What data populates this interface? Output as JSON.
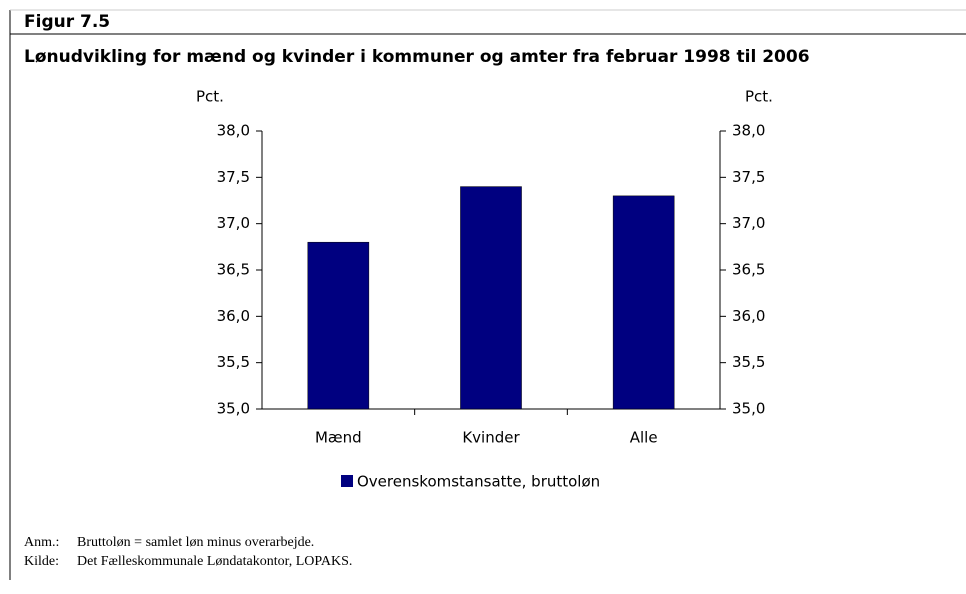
{
  "chart_data": {
    "type": "bar",
    "figure_label": "Figur 7.5",
    "title": "Lønudvikling for mænd og kvinder i kommuner og amter fra februar 1998 til 2006",
    "y_label": "Pct.",
    "y2_label": "Pct.",
    "categories": [
      "Mænd",
      "Kvinder",
      "Alle"
    ],
    "series": [
      {
        "name": "Overenskomstansatte, bruttoløn",
        "color": "#000080",
        "values": [
          36.8,
          37.4,
          37.3
        ]
      }
    ],
    "ylim": [
      35,
      38
    ],
    "yticks": [
      {
        "value": 35,
        "label": "35,0"
      },
      {
        "value": 35.5,
        "label": "35,5"
      },
      {
        "value": 36,
        "label": "36,0"
      },
      {
        "value": 36.5,
        "label": "36,5"
      },
      {
        "value": 37,
        "label": "37,0"
      },
      {
        "value": 37.5,
        "label": "37,5"
      },
      {
        "value": 38,
        "label": "38,0"
      }
    ],
    "y2lim": [
      35,
      38
    ],
    "y2ticks": [
      {
        "value": 35,
        "label": "35,0"
      },
      {
        "value": 35.5,
        "label": "35,5"
      },
      {
        "value": 36,
        "label": "36,0"
      },
      {
        "value": 36.5,
        "label": "36,5"
      },
      {
        "value": 37,
        "label": "37,0"
      },
      {
        "value": 37.5,
        "label": "37,5"
      },
      {
        "value": 38,
        "label": "38,0"
      }
    ],
    "grid": false,
    "legend": "bottom",
    "notes": [
      {
        "label": "Anm.:",
        "text": "Bruttoløn = samlet løn minus overarbejde."
      },
      {
        "label": "Kilde:",
        "text": "Det Fælleskommunale Løndatakontor, LOPAKS."
      }
    ]
  }
}
